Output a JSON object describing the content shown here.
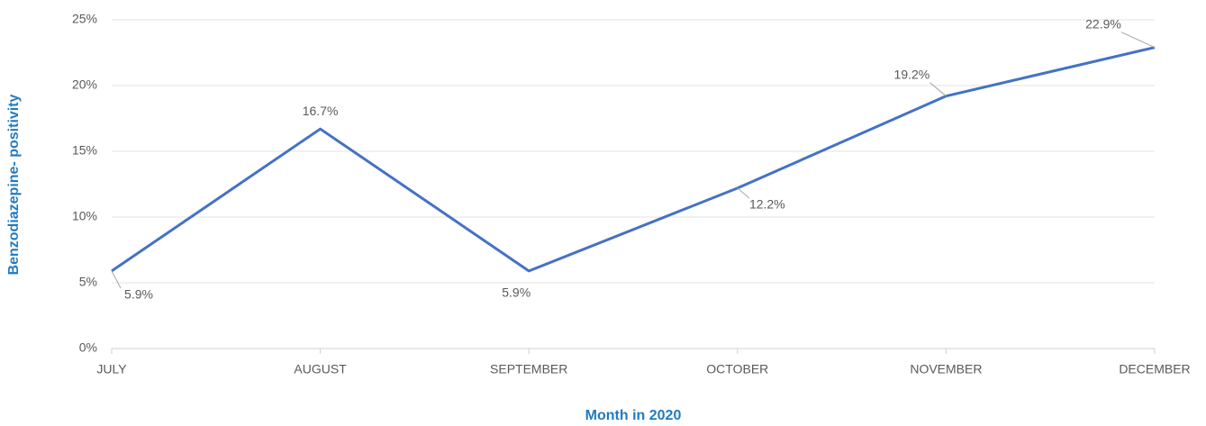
{
  "chart_data": {
    "type": "line",
    "categories": [
      "JULY",
      "AUGUST",
      "SEPTEMBER",
      "OCTOBER",
      "NOVEMBER",
      "DECEMBER"
    ],
    "series": [
      {
        "name": "Benzodiazepine- positivity",
        "color": "#4472c4",
        "values": [
          5.9,
          16.7,
          5.9,
          12.2,
          19.2,
          22.9
        ],
        "value_labels": [
          "5.9%",
          "16.7%",
          "5.9%",
          "12.2%",
          "19.2%",
          "22.9%"
        ]
      }
    ],
    "x_label": "Month in 2020",
    "y_label": "Benzodiazepine- positivity",
    "ylim": [
      0,
      25
    ],
    "yticks": [
      {
        "value": 0,
        "label": "0%"
      },
      {
        "value": 5,
        "label": "5%"
      },
      {
        "value": 10,
        "label": "10%"
      },
      {
        "value": 15,
        "label": "15%"
      },
      {
        "value": 20,
        "label": "20%"
      },
      {
        "value": 25,
        "label": "25%"
      }
    ],
    "grid": true
  }
}
